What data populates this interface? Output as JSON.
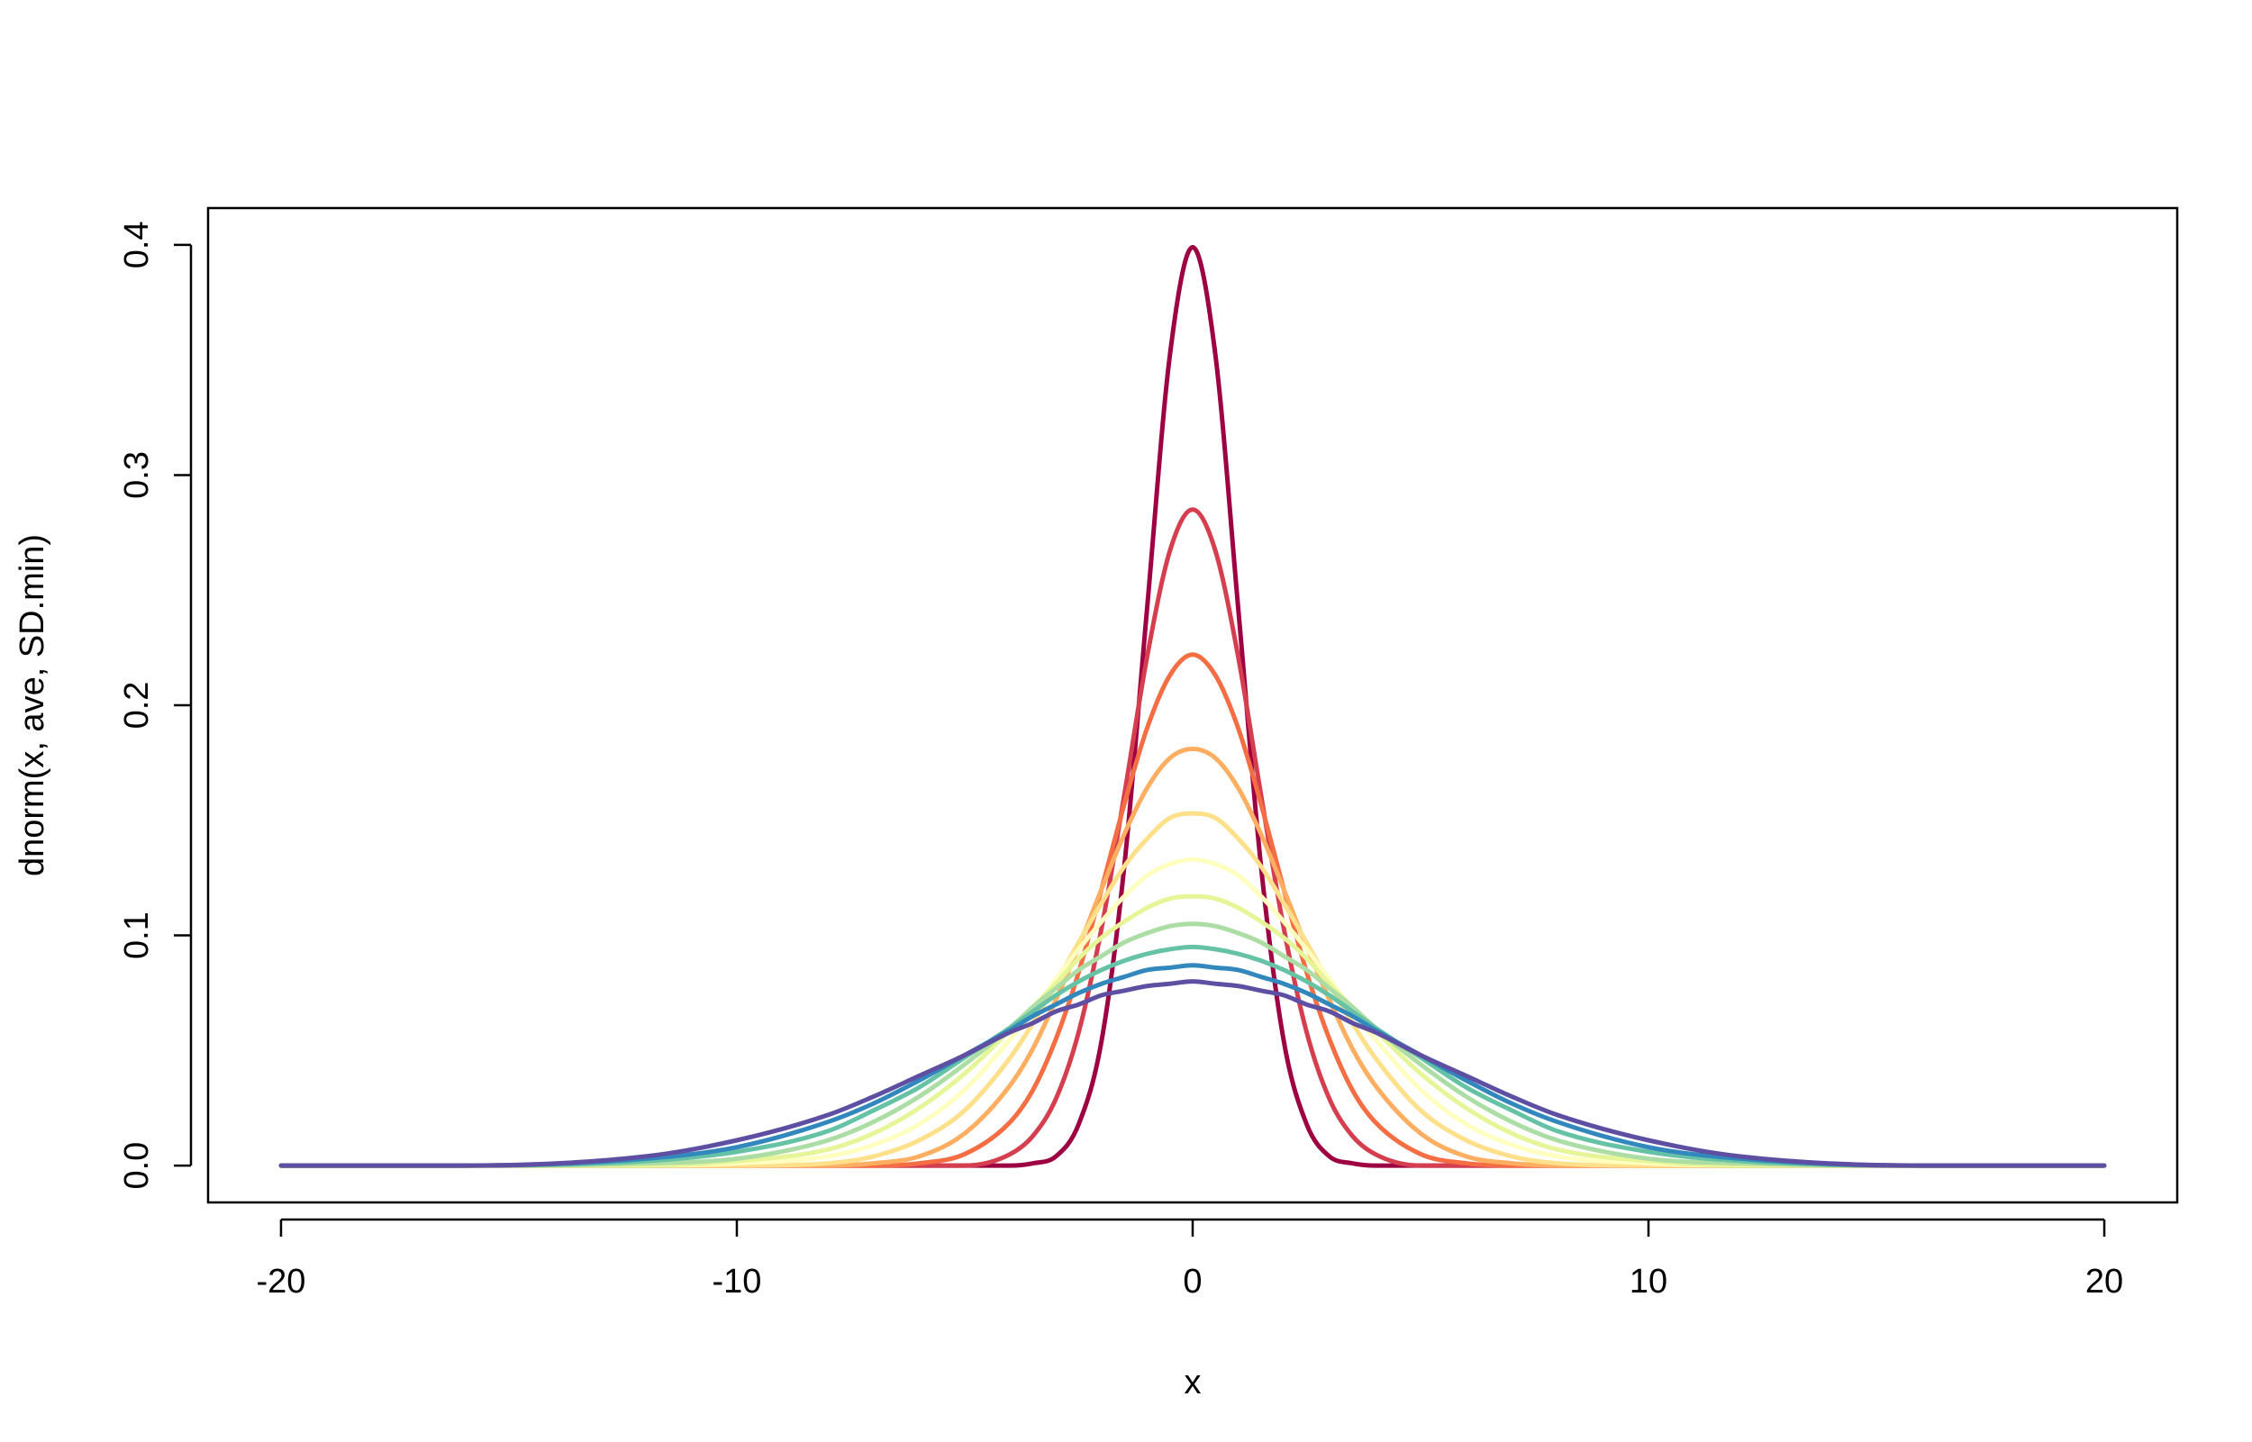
{
  "chart_data": {
    "type": "line",
    "xlabel": "x",
    "ylabel": "dnorm(x, ave, SD.min)",
    "x": [
      -20,
      -16,
      -12,
      -10,
      -8,
      -7,
      -6,
      -5,
      -4,
      -3.5,
      -3,
      -2.5,
      -2,
      -1.5,
      -1,
      -0.5,
      0,
      0.5,
      1,
      1.5,
      2,
      2.5,
      3,
      3.5,
      4,
      5,
      6,
      7,
      8,
      10,
      12,
      16,
      20
    ],
    "series": [
      {
        "color": "#9E0142",
        "values": [
          0,
          0,
          0,
          0,
          0,
          0,
          0,
          0,
          0,
          0.001,
          0.004,
          0.018,
          0.054,
          0.13,
          0.242,
          0.352,
          0.399,
          0.352,
          0.242,
          0.13,
          0.054,
          0.018,
          0.004,
          0.001,
          0,
          0,
          0,
          0,
          0,
          0,
          0,
          0,
          0
        ]
      },
      {
        "color": "#D53E4F",
        "values": [
          0,
          0,
          0,
          0,
          0,
          0,
          0,
          0,
          0.005,
          0.013,
          0.029,
          0.058,
          0.103,
          0.161,
          0.221,
          0.267,
          0.285,
          0.267,
          0.221,
          0.161,
          0.103,
          0.058,
          0.029,
          0.013,
          0.005,
          0,
          0,
          0,
          0,
          0,
          0,
          0,
          0
        ]
      },
      {
        "color": "#F46D43",
        "values": [
          0,
          0,
          0,
          0,
          0,
          0,
          0.001,
          0.005,
          0.019,
          0.033,
          0.055,
          0.084,
          0.12,
          0.157,
          0.19,
          0.213,
          0.222,
          0.213,
          0.19,
          0.157,
          0.12,
          0.084,
          0.055,
          0.033,
          0.019,
          0.005,
          0.001,
          0,
          0,
          0,
          0,
          0,
          0
        ]
      },
      {
        "color": "#FDAE61",
        "values": [
          0,
          0,
          0,
          0,
          0,
          0.001,
          0.004,
          0.014,
          0.035,
          0.051,
          0.072,
          0.095,
          0.12,
          0.144,
          0.164,
          0.177,
          0.181,
          0.177,
          0.164,
          0.144,
          0.12,
          0.095,
          0.072,
          0.051,
          0.035,
          0.014,
          0.004,
          0.001,
          0,
          0,
          0,
          0,
          0
        ]
      },
      {
        "color": "#FEE08B",
        "values": [
          0,
          0,
          0,
          0,
          0.001,
          0.004,
          0.011,
          0.024,
          0.047,
          0.062,
          0.079,
          0.097,
          0.114,
          0.13,
          0.142,
          0.151,
          0.153,
          0.151,
          0.142,
          0.13,
          0.114,
          0.097,
          0.079,
          0.062,
          0.047,
          0.024,
          0.011,
          0.004,
          0.001,
          0,
          0,
          0,
          0
        ]
      },
      {
        "color": "#FFFFBF",
        "values": [
          0,
          0,
          0,
          0.001,
          0.004,
          0.009,
          0.018,
          0.033,
          0.055,
          0.067,
          0.081,
          0.094,
          0.106,
          0.117,
          0.126,
          0.131,
          0.133,
          0.131,
          0.126,
          0.117,
          0.106,
          0.094,
          0.081,
          0.067,
          0.055,
          0.033,
          0.018,
          0.009,
          0.004,
          0.001,
          0,
          0,
          0
        ]
      },
      {
        "color": "#E6F598",
        "values": [
          0,
          0,
          0,
          0.002,
          0.007,
          0.014,
          0.025,
          0.04,
          0.059,
          0.069,
          0.079,
          0.09,
          0.099,
          0.106,
          0.112,
          0.116,
          0.117,
          0.116,
          0.112,
          0.106,
          0.099,
          0.09,
          0.079,
          0.069,
          0.059,
          0.04,
          0.025,
          0.014,
          0.007,
          0.002,
          0,
          0,
          0
        ]
      },
      {
        "color": "#ABDDA4",
        "values": [
          0,
          0,
          0.001,
          0.003,
          0.011,
          0.019,
          0.03,
          0.044,
          0.06,
          0.069,
          0.077,
          0.085,
          0.091,
          0.097,
          0.101,
          0.104,
          0.105,
          0.104,
          0.101,
          0.097,
          0.091,
          0.085,
          0.077,
          0.069,
          0.06,
          0.044,
          0.03,
          0.019,
          0.011,
          0.003,
          0.001,
          0,
          0
        ]
      },
      {
        "color": "#66C2A5",
        "values": [
          0,
          0,
          0.002,
          0.006,
          0.015,
          0.024,
          0.034,
          0.047,
          0.06,
          0.067,
          0.074,
          0.08,
          0.085,
          0.089,
          0.092,
          0.094,
          0.095,
          0.094,
          0.092,
          0.089,
          0.085,
          0.08,
          0.074,
          0.067,
          0.06,
          0.047,
          0.034,
          0.024,
          0.015,
          0.006,
          0.002,
          0,
          0
        ]
      },
      {
        "color": "#3288BD",
        "values": [
          0,
          0,
          0.003,
          0.008,
          0.019,
          0.027,
          0.037,
          0.048,
          0.059,
          0.065,
          0.07,
          0.075,
          0.079,
          0.082,
          0.085,
          0.086,
          0.087,
          0.086,
          0.085,
          0.082,
          0.079,
          0.075,
          0.07,
          0.065,
          0.059,
          0.048,
          0.037,
          0.027,
          0.019,
          0.008,
          0.003,
          0,
          0
        ]
      },
      {
        "color": "#5E4FA2",
        "values": [
          0,
          0,
          0.004,
          0.011,
          0.022,
          0.03,
          0.039,
          0.048,
          0.058,
          0.062,
          0.067,
          0.07,
          0.074,
          0.076,
          0.078,
          0.079,
          0.08,
          0.079,
          0.078,
          0.076,
          0.074,
          0.07,
          0.067,
          0.062,
          0.058,
          0.048,
          0.039,
          0.03,
          0.022,
          0.011,
          0.004,
          0,
          0
        ]
      }
    ],
    "xlim": [
      -21.6,
      21.6
    ],
    "xticks": [
      -20,
      -10,
      0,
      10,
      20
    ],
    "ylim": [
      -0.016,
      0.416
    ],
    "yticks": [
      {
        "value": 0,
        "label": "0.0"
      },
      0.1,
      0.2,
      0.3,
      0.4
    ]
  }
}
